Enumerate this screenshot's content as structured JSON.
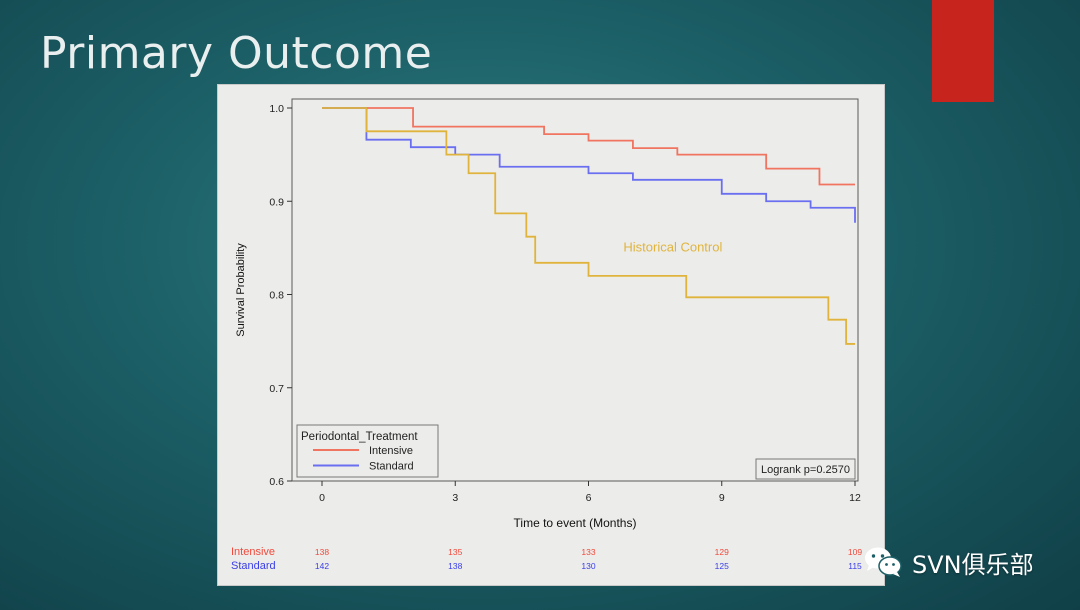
{
  "slide": {
    "title": "Primary Outcome",
    "accent_color": "#c8241e"
  },
  "watermark": {
    "icon": "wechat-icon",
    "text": "SVN俱乐部"
  },
  "chart_data": {
    "type": "line",
    "step": true,
    "xlabel": "Time to event (Months)",
    "ylabel": "Survival Probability",
    "xlim": [
      0,
      12
    ],
    "ylim": [
      0.6,
      1.0
    ],
    "xticks": [
      "0",
      "3",
      "6",
      "9",
      "12"
    ],
    "yticks": [
      "0.6",
      "0.7",
      "0.8",
      "0.9",
      "1.0"
    ],
    "grid": false,
    "legend": {
      "title": "Periodontal_Treatment",
      "position": "bottom-left",
      "entries": [
        "Intensive",
        "Standard"
      ]
    },
    "annotations": [
      {
        "text": "Historical Control",
        "x": 7.9,
        "y": 0.846,
        "color": "#e0b43c"
      },
      {
        "text": "Logrank p=0.2570",
        "position": "bottom-right",
        "boxed": true
      }
    ],
    "series": [
      {
        "name": "Intensive",
        "color": "#f07460",
        "x": [
          0,
          1.0,
          2.05,
          5.0,
          6.0,
          7.0,
          8.0,
          10.0,
          11.2,
          12.0
        ],
        "y": [
          1.0,
          1.0,
          0.98,
          0.972,
          0.965,
          0.957,
          0.95,
          0.935,
          0.918,
          0.918
        ]
      },
      {
        "name": "Standard",
        "color": "#6a6ef0",
        "x": [
          0,
          1.0,
          2.0,
          3.0,
          4.0,
          6.0,
          7.0,
          9.0,
          10.0,
          11.0,
          12.0,
          12.0
        ],
        "y": [
          1.0,
          0.966,
          0.958,
          0.95,
          0.937,
          0.93,
          0.923,
          0.908,
          0.9,
          0.893,
          0.89,
          0.877
        ]
      },
      {
        "color": "#e0b43c",
        "x": [
          0,
          1.0,
          2.0,
          2.8,
          3.3,
          3.9,
          4.6,
          4.8,
          6.0,
          8.2,
          11.4,
          11.8,
          12.0
        ],
        "y": [
          1.0,
          0.975,
          0.975,
          0.95,
          0.93,
          0.887,
          0.862,
          0.834,
          0.82,
          0.797,
          0.773,
          0.747,
          0.747
        ]
      }
    ],
    "risk_table": {
      "x": [
        0,
        3,
        6,
        9,
        12
      ],
      "rows": [
        {
          "label": "Intensive",
          "color": "#f04a3c",
          "values": [
            "138",
            "135",
            "133",
            "129",
            "109"
          ]
        },
        {
          "label": "Standard",
          "color": "#3a3ee8",
          "values": [
            "142",
            "138",
            "130",
            "125",
            "115"
          ]
        }
      ]
    }
  }
}
